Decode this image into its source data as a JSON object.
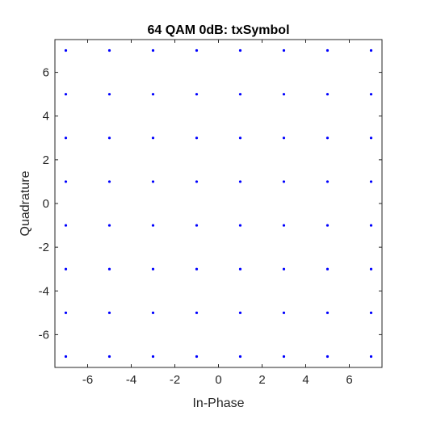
{
  "chart_data": {
    "type": "scatter",
    "title": "64 QAM 0dB: txSymbol",
    "xlabel": "In-Phase",
    "ylabel": "Quadrature",
    "xlim": [
      -7.5,
      7.5
    ],
    "ylim": [
      -7.5,
      7.5
    ],
    "xticks": [
      -6,
      -4,
      -2,
      0,
      2,
      4,
      6
    ],
    "yticks": [
      -6,
      -4,
      -2,
      0,
      2,
      4,
      6
    ],
    "xtick_labels": [
      "-6",
      "-4",
      "-2",
      "0",
      "2",
      "4",
      "6"
    ],
    "ytick_labels": [
      "-6",
      "-4",
      "-2",
      "0",
      "2",
      "4",
      "6"
    ],
    "grid": false,
    "marker_color": "#0000ff",
    "series": [
      {
        "levels": [
          -7,
          -5,
          -3,
          -1,
          1,
          3,
          5,
          7
        ],
        "points": [
          [
            -7,
            7
          ],
          [
            -5,
            7
          ],
          [
            -3,
            7
          ],
          [
            -1,
            7
          ],
          [
            1,
            7
          ],
          [
            3,
            7
          ],
          [
            5,
            7
          ],
          [
            7,
            7
          ],
          [
            -7,
            5
          ],
          [
            -5,
            5
          ],
          [
            -3,
            5
          ],
          [
            -1,
            5
          ],
          [
            1,
            5
          ],
          [
            3,
            5
          ],
          [
            5,
            5
          ],
          [
            7,
            5
          ],
          [
            -7,
            3
          ],
          [
            -5,
            3
          ],
          [
            -3,
            3
          ],
          [
            -1,
            3
          ],
          [
            1,
            3
          ],
          [
            3,
            3
          ],
          [
            5,
            3
          ],
          [
            7,
            3
          ],
          [
            -7,
            1
          ],
          [
            -5,
            1
          ],
          [
            -3,
            1
          ],
          [
            -1,
            1
          ],
          [
            1,
            1
          ],
          [
            3,
            1
          ],
          [
            5,
            1
          ],
          [
            7,
            1
          ],
          [
            -7,
            -1
          ],
          [
            -5,
            -1
          ],
          [
            -3,
            -1
          ],
          [
            -1,
            -1
          ],
          [
            1,
            -1
          ],
          [
            3,
            -1
          ],
          [
            5,
            -1
          ],
          [
            7,
            -1
          ],
          [
            -7,
            -3
          ],
          [
            -5,
            -3
          ],
          [
            -3,
            -3
          ],
          [
            -1,
            -3
          ],
          [
            1,
            -3
          ],
          [
            3,
            -3
          ],
          [
            5,
            -3
          ],
          [
            7,
            -3
          ],
          [
            -7,
            -5
          ],
          [
            -5,
            -5
          ],
          [
            -3,
            -5
          ],
          [
            -1,
            -5
          ],
          [
            1,
            -5
          ],
          [
            3,
            -5
          ],
          [
            5,
            -5
          ],
          [
            7,
            -5
          ],
          [
            -7,
            -7
          ],
          [
            -5,
            -7
          ],
          [
            -3,
            -7
          ],
          [
            -1,
            -7
          ],
          [
            1,
            -7
          ],
          [
            3,
            -7
          ],
          [
            5,
            -7
          ],
          [
            7,
            -7
          ]
        ]
      }
    ]
  }
}
